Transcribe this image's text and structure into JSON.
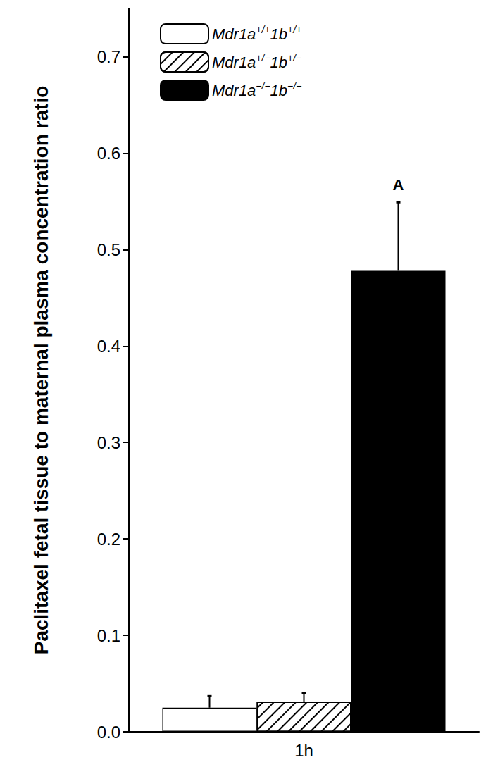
{
  "chart_data": {
    "type": "bar",
    "categories": [
      "1h"
    ],
    "series": [
      {
        "name": "Mdr1a+/+1b+/+",
        "color": "#ffffff",
        "values": [
          0.025
        ],
        "error": [
          0.012
        ]
      },
      {
        "name": "Mdr1a+/−1b+/−",
        "color": "#ffffff",
        "values": [
          0.031
        ],
        "error": [
          0.009
        ]
      },
      {
        "name": "Mdr1a−/−1b−/−",
        "color": "#000000",
        "values": [
          0.478
        ],
        "error": [
          0.071
        ]
      }
    ],
    "y_label": "Paclitaxel fetal tissue to maternal plasma concentration ratio",
    "ylim": [
      0,
      0.75
    ],
    "yticks": [
      {
        "value": 0,
        "label": "0.0"
      },
      0.1,
      0.2,
      0.3,
      0.4,
      0.5,
      0.6,
      0.7
    ],
    "grid": false,
    "legend": "upper left",
    "annotations": [
      {
        "text": "A",
        "series": "Mdr1a−/−1b−/−",
        "category": "1h"
      }
    ]
  }
}
